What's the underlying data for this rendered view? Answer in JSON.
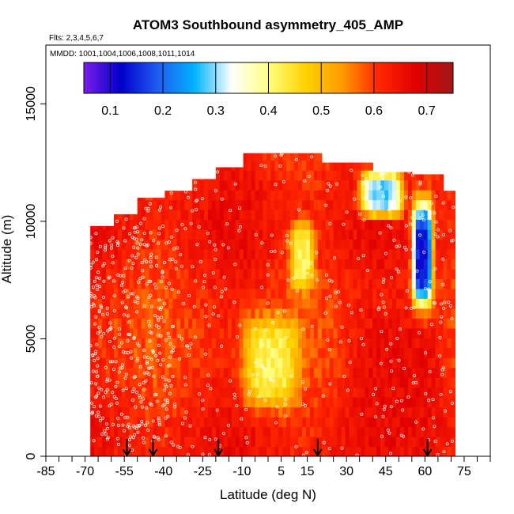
{
  "chart_data": {
    "type": "heatmap",
    "title": "ATOM3 Southbound asymmetry_405_AMP",
    "flights_note": "Flts: 2,3,4,5,6,7",
    "mmdd_note": "MMDD: 1001,1004,1006,1008,1011,1014",
    "xlabel": "Latitude (deg N)",
    "ylabel": "Altitude (m)",
    "xlim": [
      -85,
      85
    ],
    "ylim": [
      0,
      17500
    ],
    "x_tick_labels": [
      "-85",
      "-70",
      "-55",
      "-40",
      "-25",
      "-10",
      "5",
      "15",
      "30",
      "45",
      "60",
      "75"
    ],
    "x_tick_values": [
      -85,
      -70,
      -55,
      -40,
      -25,
      -10,
      5,
      15,
      30,
      45,
      60,
      75
    ],
    "y_tick_labels": [
      "0",
      "5000",
      "10000",
      "15000"
    ],
    "y_tick_values": [
      0,
      5000,
      10000,
      15000
    ],
    "colorbar": {
      "range": [
        0.05,
        0.75
      ],
      "tick_labels": [
        "0.1",
        "0.2",
        "0.3",
        "0.4",
        "0.5",
        "0.6",
        "0.7"
      ],
      "tick_values": [
        0.1,
        0.2,
        0.3,
        0.4,
        0.5,
        0.6,
        0.7
      ],
      "colors": [
        "#7a1ee6",
        "#0000cc",
        "#1f5cf0",
        "#00b2ff",
        "#ffffff",
        "#ffff80",
        "#ffd200",
        "#ff9a00",
        "#ff2600",
        "#e00000",
        "#a01818"
      ]
    },
    "markers": {
      "type": "arrow-down",
      "latitudes": [
        -54,
        -44,
        -19,
        19,
        61
      ]
    },
    "data_extent": {
      "lat_range": [
        -68,
        71
      ],
      "alt_range": [
        0,
        13000
      ]
    },
    "features": [
      {
        "lat": [
          55,
          63
        ],
        "alt": [
          6000,
          11000
        ],
        "value": 0.12
      },
      {
        "lat": [
          35,
          52
        ],
        "alt": [
          10200,
          12200
        ],
        "value": 0.28
      },
      {
        "lat": [
          -10,
          12
        ],
        "alt": [
          2000,
          6000
        ],
        "value": 0.42
      },
      {
        "lat": [
          8,
          18
        ],
        "alt": [
          7000,
          10000
        ],
        "value": 0.42
      },
      {
        "lat": [
          30,
          70
        ],
        "alt": [
          0,
          6500
        ],
        "value": 0.66
      }
    ],
    "grid": false,
    "legend": "colorbar-top"
  }
}
